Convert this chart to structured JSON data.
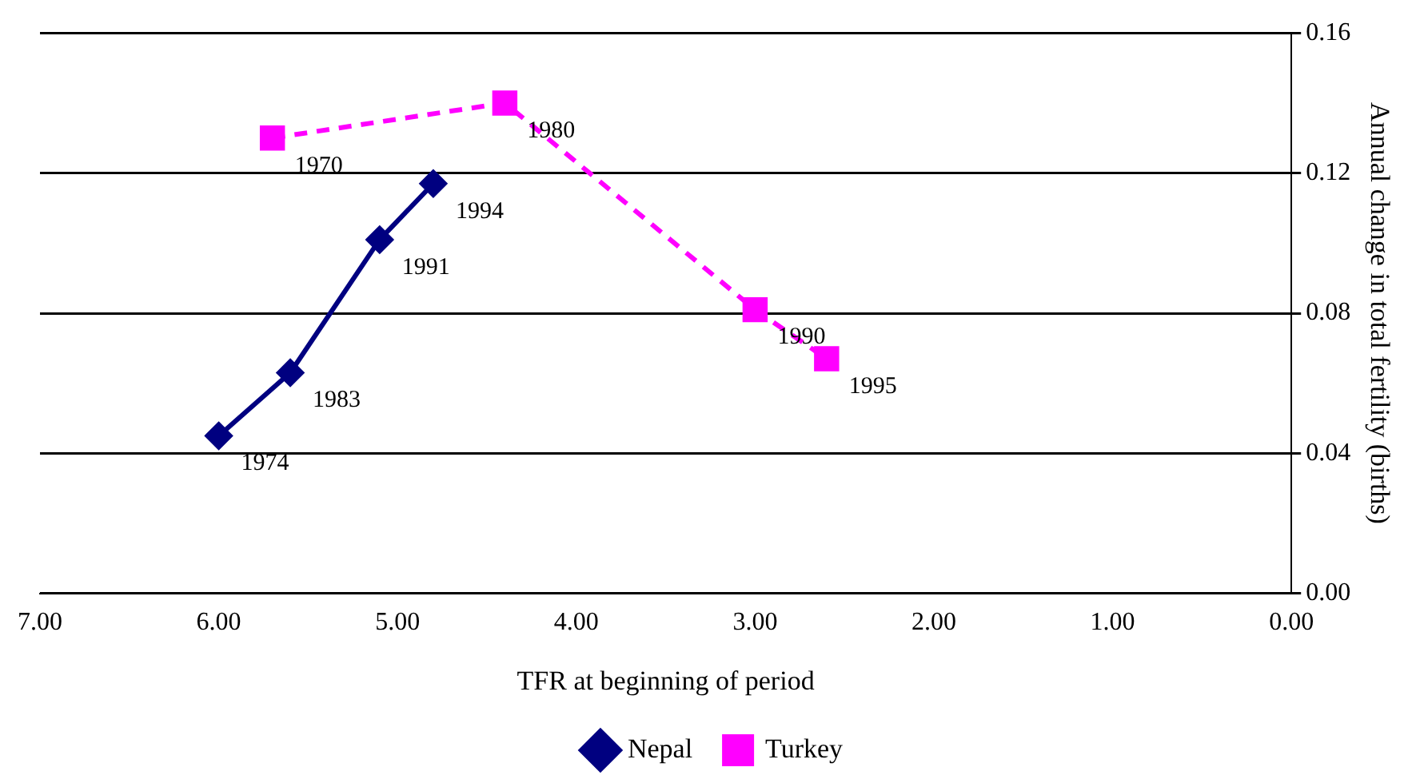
{
  "chart_data": {
    "type": "line",
    "xlabel": "TFR at beginning of period",
    "ylabel": "Annual change in total fertility (births)",
    "xlim": [
      7,
      0
    ],
    "xticks": [
      {
        "value": 7,
        "label": "7.00"
      },
      {
        "value": 6,
        "label": "6.00"
      },
      {
        "value": 5,
        "label": "5.00"
      },
      {
        "value": 4,
        "label": "4.00"
      },
      {
        "value": 3,
        "label": "3.00"
      },
      {
        "value": 2,
        "label": "2.00"
      },
      {
        "value": 1,
        "label": "1.00"
      },
      {
        "value": 0,
        "label": "0.00"
      }
    ],
    "ylim": [
      0,
      0.16
    ],
    "yticks": [
      {
        "value": 0,
        "label": "0.00"
      },
      {
        "value": 0.04,
        "label": "0.04"
      },
      {
        "value": 0.08,
        "label": "0.08"
      },
      {
        "value": 0.12,
        "label": "0.12"
      },
      {
        "value": 0.16,
        "label": "0.16"
      }
    ],
    "grid": "y",
    "legend": "bottom",
    "series": [
      {
        "name": "Nepal",
        "color": "#000080",
        "marker": "diamond",
        "line_style": "solid",
        "x": [
          6.0,
          5.6,
          5.1,
          4.8
        ],
        "values": [
          0.045,
          0.063,
          0.101,
          0.117
        ]
      },
      {
        "name": "Turkey",
        "color": "#ff00ff",
        "marker": "square",
        "line_style": "dashed",
        "x": [
          5.7,
          4.4,
          3.0,
          2.6
        ],
        "values": [
          0.13,
          0.14,
          0.081,
          0.067
        ]
      }
    ],
    "annotations": [
      {
        "text": "1974",
        "x": 6.0,
        "y": 0.045
      },
      {
        "text": "1983",
        "x": 5.6,
        "y": 0.063
      },
      {
        "text": "1991",
        "x": 5.1,
        "y": 0.101
      },
      {
        "text": "1994",
        "x": 4.8,
        "y": 0.117
      },
      {
        "text": "1970",
        "x": 5.7,
        "y": 0.13
      },
      {
        "text": "1980",
        "x": 4.4,
        "y": 0.14
      },
      {
        "text": "1990",
        "x": 3.0,
        "y": 0.081
      },
      {
        "text": "1995",
        "x": 2.6,
        "y": 0.067
      }
    ]
  }
}
